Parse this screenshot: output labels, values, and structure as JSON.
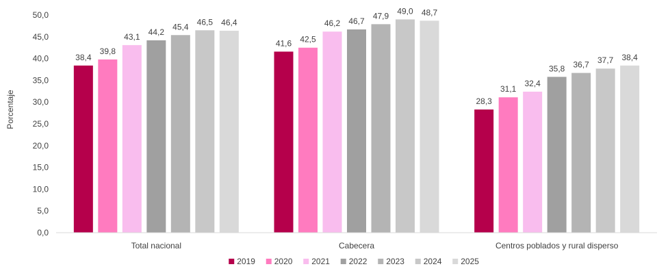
{
  "chart_data": {
    "type": "bar",
    "title": "",
    "xlabel": "",
    "ylabel": "Porcentaje",
    "ylim": [
      0,
      50
    ],
    "ytick_step": 5,
    "ytick_labels": [
      "0,0",
      "5,0",
      "10,0",
      "15,0",
      "20,0",
      "25,0",
      "30,0",
      "35,0",
      "40,0",
      "45,0",
      "50,0"
    ],
    "grid": false,
    "legend_position": "bottom",
    "decimal_separator": ",",
    "categories": [
      "Total nacional",
      "Cabecera",
      "Centros poblados y rural disperso"
    ],
    "series": [
      {
        "name": "2019",
        "color": "#B5004B",
        "values": [
          38.4,
          41.6,
          28.3
        ],
        "labels": [
          "38,4",
          "41,6",
          "28,3"
        ]
      },
      {
        "name": "2020",
        "color": "#FF7BBF",
        "values": [
          39.8,
          42.5,
          31.1
        ],
        "labels": [
          "39,8",
          "42,5",
          "31,1"
        ]
      },
      {
        "name": "2021",
        "color": "#F9BDEE",
        "values": [
          43.1,
          46.2,
          32.4
        ],
        "labels": [
          "43,1",
          "46,2",
          "32,4"
        ]
      },
      {
        "name": "2022",
        "color": "#A0A0A0",
        "values": [
          44.2,
          46.7,
          35.8
        ],
        "labels": [
          "44,2",
          "46,7",
          "35,8"
        ]
      },
      {
        "name": "2023",
        "color": "#B4B4B4",
        "values": [
          45.4,
          47.9,
          36.7
        ],
        "labels": [
          "45,4",
          "47,9",
          "36,7"
        ]
      },
      {
        "name": "2024",
        "color": "#C8C8C8",
        "values": [
          46.5,
          49.0,
          37.7
        ],
        "labels": [
          "46,5",
          "49,0",
          "37,7"
        ]
      },
      {
        "name": "2025",
        "color": "#D9D9D9",
        "values": [
          46.4,
          48.7,
          38.4
        ],
        "labels": [
          "46,4",
          "48,7",
          "38,4"
        ]
      }
    ]
  }
}
